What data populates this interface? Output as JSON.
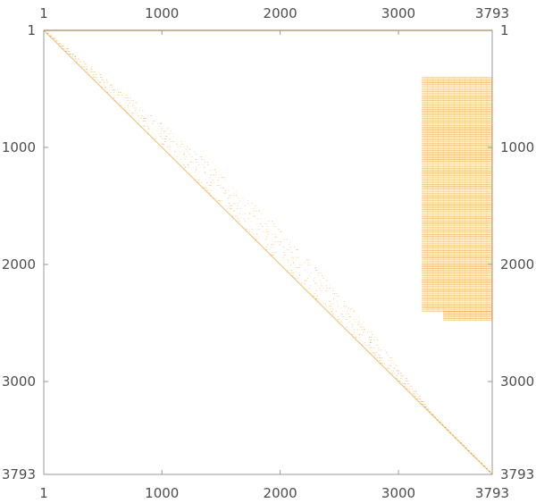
{
  "chart_data": {
    "type": "heatmap",
    "subtype": "sparse-matrix-plot",
    "rows": 3793,
    "columns": 3793,
    "xlim": [
      1,
      3793
    ],
    "ylim": [
      1,
      3793
    ],
    "y_axis_inverted": true,
    "x_ticks": [
      {
        "value": 1,
        "label": "1"
      },
      {
        "value": 1000,
        "label": "1000"
      },
      {
        "value": 2000,
        "label": "2000"
      },
      {
        "value": 3000,
        "label": "3000"
      },
      {
        "value": 3793,
        "label": "3793"
      }
    ],
    "y_ticks": [
      {
        "value": 1,
        "label": "1"
      },
      {
        "value": 1000,
        "label": "1000"
      },
      {
        "value": 2000,
        "label": "2000"
      },
      {
        "value": 3000,
        "label": "3000"
      },
      {
        "value": 3793,
        "label": "3793"
      }
    ],
    "tick_labels_on": [
      "top",
      "bottom",
      "left",
      "right"
    ],
    "grid": false,
    "entry_color": "#e8941a",
    "background_color": "#ffffff",
    "frame_color": "#9a9a9a",
    "structures": [
      {
        "kind": "diagonal-band",
        "from": [
          1,
          1
        ],
        "to": [
          3793,
          3793
        ],
        "band_width_cols": [
          5,
          300
        ]
      },
      {
        "kind": "dense-row",
        "row": 1,
        "cols": [
          1,
          3793
        ]
      },
      {
        "kind": "dense-block",
        "rows": [
          400,
          2400
        ],
        "cols": [
          3200,
          3793
        ]
      },
      {
        "kind": "dense-block",
        "rows": [
          2400,
          2480
        ],
        "cols": [
          3380,
          3793
        ]
      }
    ]
  }
}
